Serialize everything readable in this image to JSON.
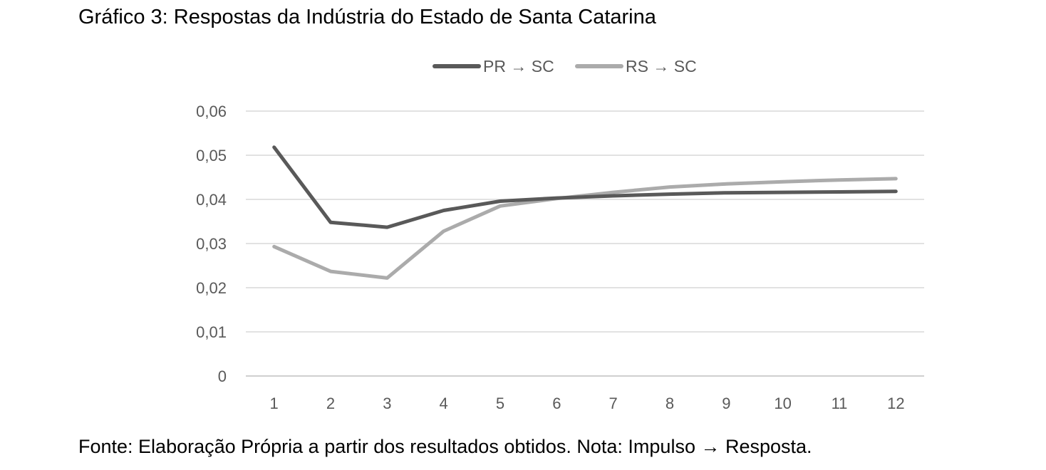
{
  "figure": {
    "title": "Gráfico 3: Respostas da Indústria do Estado de Santa Catarina",
    "source": "Fonte: Elaboração Própria a partir dos resultados obtidos. Nota: Impulso → Resposta."
  },
  "chart_data": {
    "type": "line",
    "title": "",
    "xlabel": "",
    "ylabel": "",
    "categories": [
      "1",
      "2",
      "3",
      "4",
      "5",
      "6",
      "7",
      "8",
      "9",
      "10",
      "11",
      "12"
    ],
    "y_ticks": [
      "0",
      "0,01",
      "0,02",
      "0,03",
      "0,04",
      "0,05",
      "0,06"
    ],
    "ylim": [
      0,
      0.06
    ],
    "grid": true,
    "legend_position": "top",
    "series": [
      {
        "name": "PR → SC",
        "color": "#595959",
        "values": [
          0.0518,
          0.0348,
          0.0337,
          0.0375,
          0.0396,
          0.0403,
          0.0408,
          0.0412,
          0.0415,
          0.0416,
          0.0417,
          0.0418
        ]
      },
      {
        "name": "RS → SC",
        "color": "#ababab",
        "values": [
          0.0293,
          0.0237,
          0.0222,
          0.0328,
          0.0385,
          0.0402,
          0.0416,
          0.0428,
          0.0435,
          0.044,
          0.0444,
          0.0447
        ]
      }
    ]
  }
}
